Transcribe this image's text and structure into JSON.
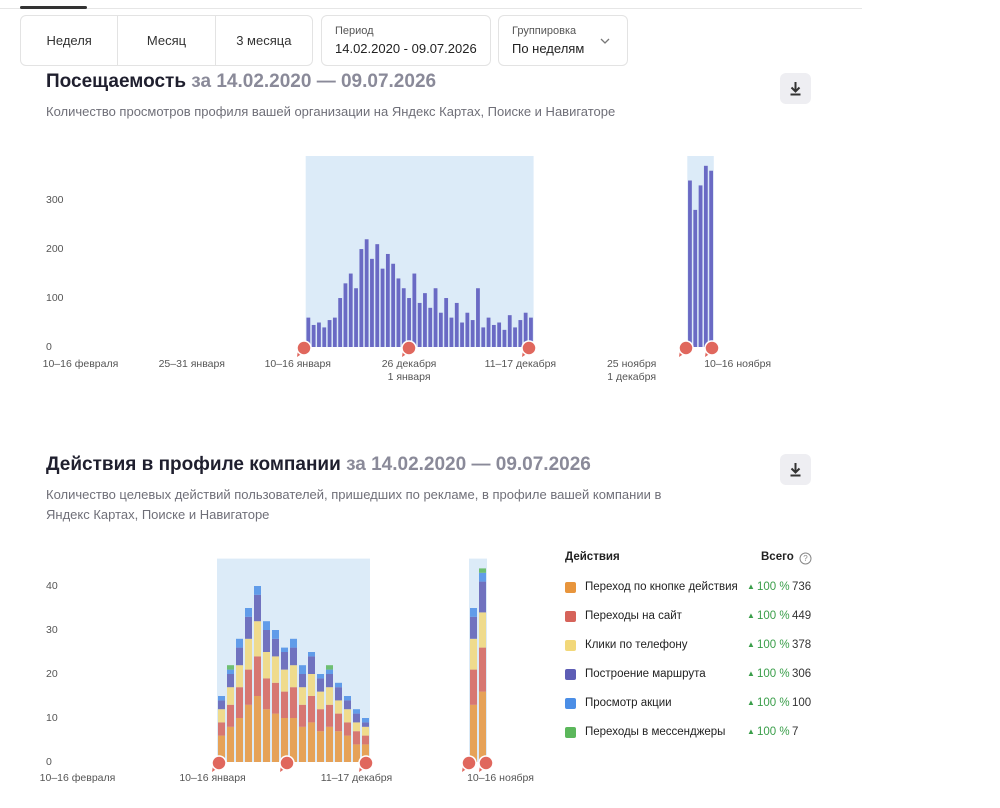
{
  "tabs": [
    "Неделя",
    "Месяц",
    "3 месяца"
  ],
  "period": {
    "label": "Период",
    "value": "14.02.2020 - 09.07.2026"
  },
  "grouping": {
    "label": "Группировка",
    "value": "По неделям"
  },
  "chart_data": [
    {
      "type": "bar",
      "title": "Посещаемость",
      "period": "за 14.02.2020 — 09.07.2026",
      "subtitle": "Количество просмотров профиля вашей организации на Яндекс Картах, Поиске и Навигаторе",
      "color": "#6a6ac4",
      "categories": [
        null,
        null,
        null,
        null,
        null,
        null,
        "10–16 февраля",
        null,
        null,
        null,
        null,
        null,
        null,
        null,
        null,
        null,
        null,
        null,
        null,
        null,
        null,
        null,
        null,
        null,
        null,
        null,
        null,
        "25–31 января",
        null,
        null,
        null,
        null,
        null,
        null,
        null,
        null,
        null,
        null,
        null,
        null,
        null,
        null,
        null,
        null,
        null,
        null,
        null,
        "10–16 января",
        null,
        null,
        null,
        null,
        null,
        null,
        null,
        null,
        null,
        null,
        null,
        null,
        null,
        null,
        null,
        null,
        null,
        null,
        null,
        null,
        "26 декабря\n1 января",
        null,
        null,
        null,
        null,
        null,
        null,
        null,
        null,
        null,
        null,
        null,
        null,
        null,
        null,
        null,
        null,
        null,
        null,
        null,
        null,
        "11–17 декабря",
        null,
        null,
        null,
        null,
        null,
        null,
        null,
        null,
        null,
        null,
        null,
        null,
        null,
        null,
        null,
        null,
        null,
        null,
        null,
        null,
        "25 ноября\n1 декабря",
        null,
        null,
        null,
        null,
        null,
        null,
        null,
        null,
        null,
        null,
        null,
        null,
        null,
        null,
        null,
        null,
        null,
        null,
        null,
        "10–16 ноября",
        null,
        null,
        null,
        null,
        null,
        null,
        null,
        null,
        null
      ],
      "values": [
        null,
        null,
        null,
        null,
        null,
        null,
        null,
        null,
        null,
        null,
        null,
        null,
        null,
        null,
        null,
        null,
        null,
        null,
        null,
        null,
        null,
        null,
        null,
        null,
        null,
        null,
        null,
        null,
        null,
        null,
        null,
        null,
        null,
        null,
        null,
        null,
        null,
        null,
        null,
        null,
        null,
        null,
        null,
        null,
        null,
        null,
        null,
        null,
        null,
        60,
        45,
        50,
        40,
        55,
        60,
        100,
        130,
        150,
        120,
        200,
        220,
        180,
        210,
        160,
        190,
        170,
        140,
        120,
        100,
        150,
        90,
        110,
        80,
        120,
        70,
        100,
        60,
        90,
        50,
        70,
        55,
        120,
        40,
        60,
        45,
        50,
        35,
        65,
        40,
        55,
        70,
        60,
        null,
        null,
        null,
        null,
        null,
        null,
        null,
        null,
        null,
        null,
        null,
        null,
        null,
        null,
        null,
        null,
        null,
        null,
        null,
        null,
        null,
        null,
        null,
        null,
        null,
        null,
        null,
        null,
        null,
        340,
        280,
        330,
        370,
        360,
        null,
        null,
        null,
        null,
        null,
        null,
        null,
        null,
        null,
        null,
        null,
        null,
        null,
        null
      ],
      "ylim": [
        0,
        388
      ],
      "yticks": [
        0,
        100,
        200,
        300
      ]
    },
    {
      "type": "stacked_bar",
      "title": "Действия в профиле компании",
      "period": "за 14.02.2020 — 09.07.2026",
      "subtitle": "Количество целевых действий пользователей, пришедших по рекламе, в профиле вашей компании в Яндекс Картах, Поиске и Навигаторе",
      "legend": {
        "title": "Действия",
        "total_label": "Всего"
      },
      "categories": [
        null,
        null,
        null,
        "10–16 февраля",
        null,
        null,
        null,
        null,
        null,
        null,
        null,
        null,
        null,
        null,
        null,
        null,
        null,
        null,
        "10–16 января",
        null,
        null,
        null,
        null,
        null,
        null,
        null,
        null,
        null,
        null,
        null,
        null,
        null,
        null,
        null,
        "11–17 декабря",
        null,
        null,
        null,
        null,
        null,
        null,
        null,
        null,
        null,
        null,
        null,
        null,
        null,
        null,
        null,
        "10–16 ноября",
        null,
        null,
        null,
        null
      ],
      "series": [
        {
          "name": "Переход по кнопке действия",
          "color": "#e8953c",
          "change": "100 %",
          "total": 736,
          "values": [
            null,
            null,
            null,
            null,
            null,
            null,
            null,
            null,
            null,
            null,
            null,
            null,
            null,
            null,
            null,
            null,
            null,
            null,
            null,
            6,
            8,
            10,
            13,
            15,
            12,
            11,
            10,
            10,
            8,
            9,
            7,
            8,
            7,
            6,
            4,
            4,
            null,
            null,
            null,
            null,
            null,
            null,
            null,
            null,
            null,
            null,
            null,
            13,
            16,
            null,
            null,
            null,
            null,
            null,
            null
          ]
        },
        {
          "name": "Переходы на сайт",
          "color": "#d6635a",
          "change": "100 %",
          "total": 449,
          "values": [
            null,
            null,
            null,
            null,
            null,
            null,
            null,
            null,
            null,
            null,
            null,
            null,
            null,
            null,
            null,
            null,
            null,
            null,
            null,
            3,
            5,
            7,
            8,
            9,
            7,
            7,
            6,
            7,
            5,
            6,
            5,
            5,
            4,
            3,
            3,
            2,
            null,
            null,
            null,
            null,
            null,
            null,
            null,
            null,
            null,
            null,
            null,
            8,
            10,
            null,
            null,
            null,
            null,
            null,
            null
          ]
        },
        {
          "name": "Клики по телефону",
          "color": "#f2d87a",
          "change": "100 %",
          "total": 378,
          "values": [
            null,
            null,
            null,
            null,
            null,
            null,
            null,
            null,
            null,
            null,
            null,
            null,
            null,
            null,
            null,
            null,
            null,
            null,
            null,
            3,
            4,
            5,
            7,
            8,
            6,
            6,
            5,
            5,
            4,
            5,
            4,
            4,
            3,
            3,
            2,
            2,
            null,
            null,
            null,
            null,
            null,
            null,
            null,
            null,
            null,
            null,
            null,
            7,
            8,
            null,
            null,
            null,
            null,
            null,
            null
          ]
        },
        {
          "name": "Построение маршрута",
          "color": "#5d5db5",
          "change": "100 %",
          "total": 306,
          "values": [
            null,
            null,
            null,
            null,
            null,
            null,
            null,
            null,
            null,
            null,
            null,
            null,
            null,
            null,
            null,
            null,
            null,
            null,
            null,
            2,
            3,
            4,
            5,
            6,
            5,
            4,
            4,
            4,
            3,
            4,
            3,
            3,
            3,
            2,
            2,
            1,
            null,
            null,
            null,
            null,
            null,
            null,
            null,
            null,
            null,
            null,
            null,
            5,
            7,
            null,
            null,
            null,
            null,
            null,
            null
          ]
        },
        {
          "name": "Просмотр акции",
          "color": "#4b8ee6",
          "change": "100 %",
          "total": 100,
          "values": [
            null,
            null,
            null,
            null,
            null,
            null,
            null,
            null,
            null,
            null,
            null,
            null,
            null,
            null,
            null,
            null,
            null,
            null,
            null,
            1,
            1,
            2,
            2,
            2,
            2,
            2,
            1,
            2,
            2,
            1,
            1,
            1,
            1,
            1,
            1,
            1,
            null,
            null,
            null,
            null,
            null,
            null,
            null,
            null,
            null,
            null,
            null,
            2,
            2,
            null,
            null,
            null,
            null,
            null,
            null
          ]
        },
        {
          "name": "Переходы в мессенджеры",
          "color": "#5bb75b",
          "change": "100 %",
          "total": 7,
          "values": [
            null,
            null,
            null,
            null,
            null,
            null,
            null,
            null,
            null,
            null,
            null,
            null,
            null,
            null,
            null,
            null,
            null,
            null,
            null,
            0,
            1,
            0,
            0,
            0,
            0,
            0,
            0,
            0,
            0,
            0,
            0,
            1,
            0,
            0,
            0,
            0,
            null,
            null,
            null,
            null,
            null,
            null,
            null,
            null,
            null,
            null,
            null,
            0,
            1,
            null,
            null,
            null,
            null,
            null,
            null
          ]
        }
      ],
      "ylim": [
        0,
        46
      ],
      "yticks": [
        0,
        10,
        20,
        30,
        40
      ]
    }
  ]
}
